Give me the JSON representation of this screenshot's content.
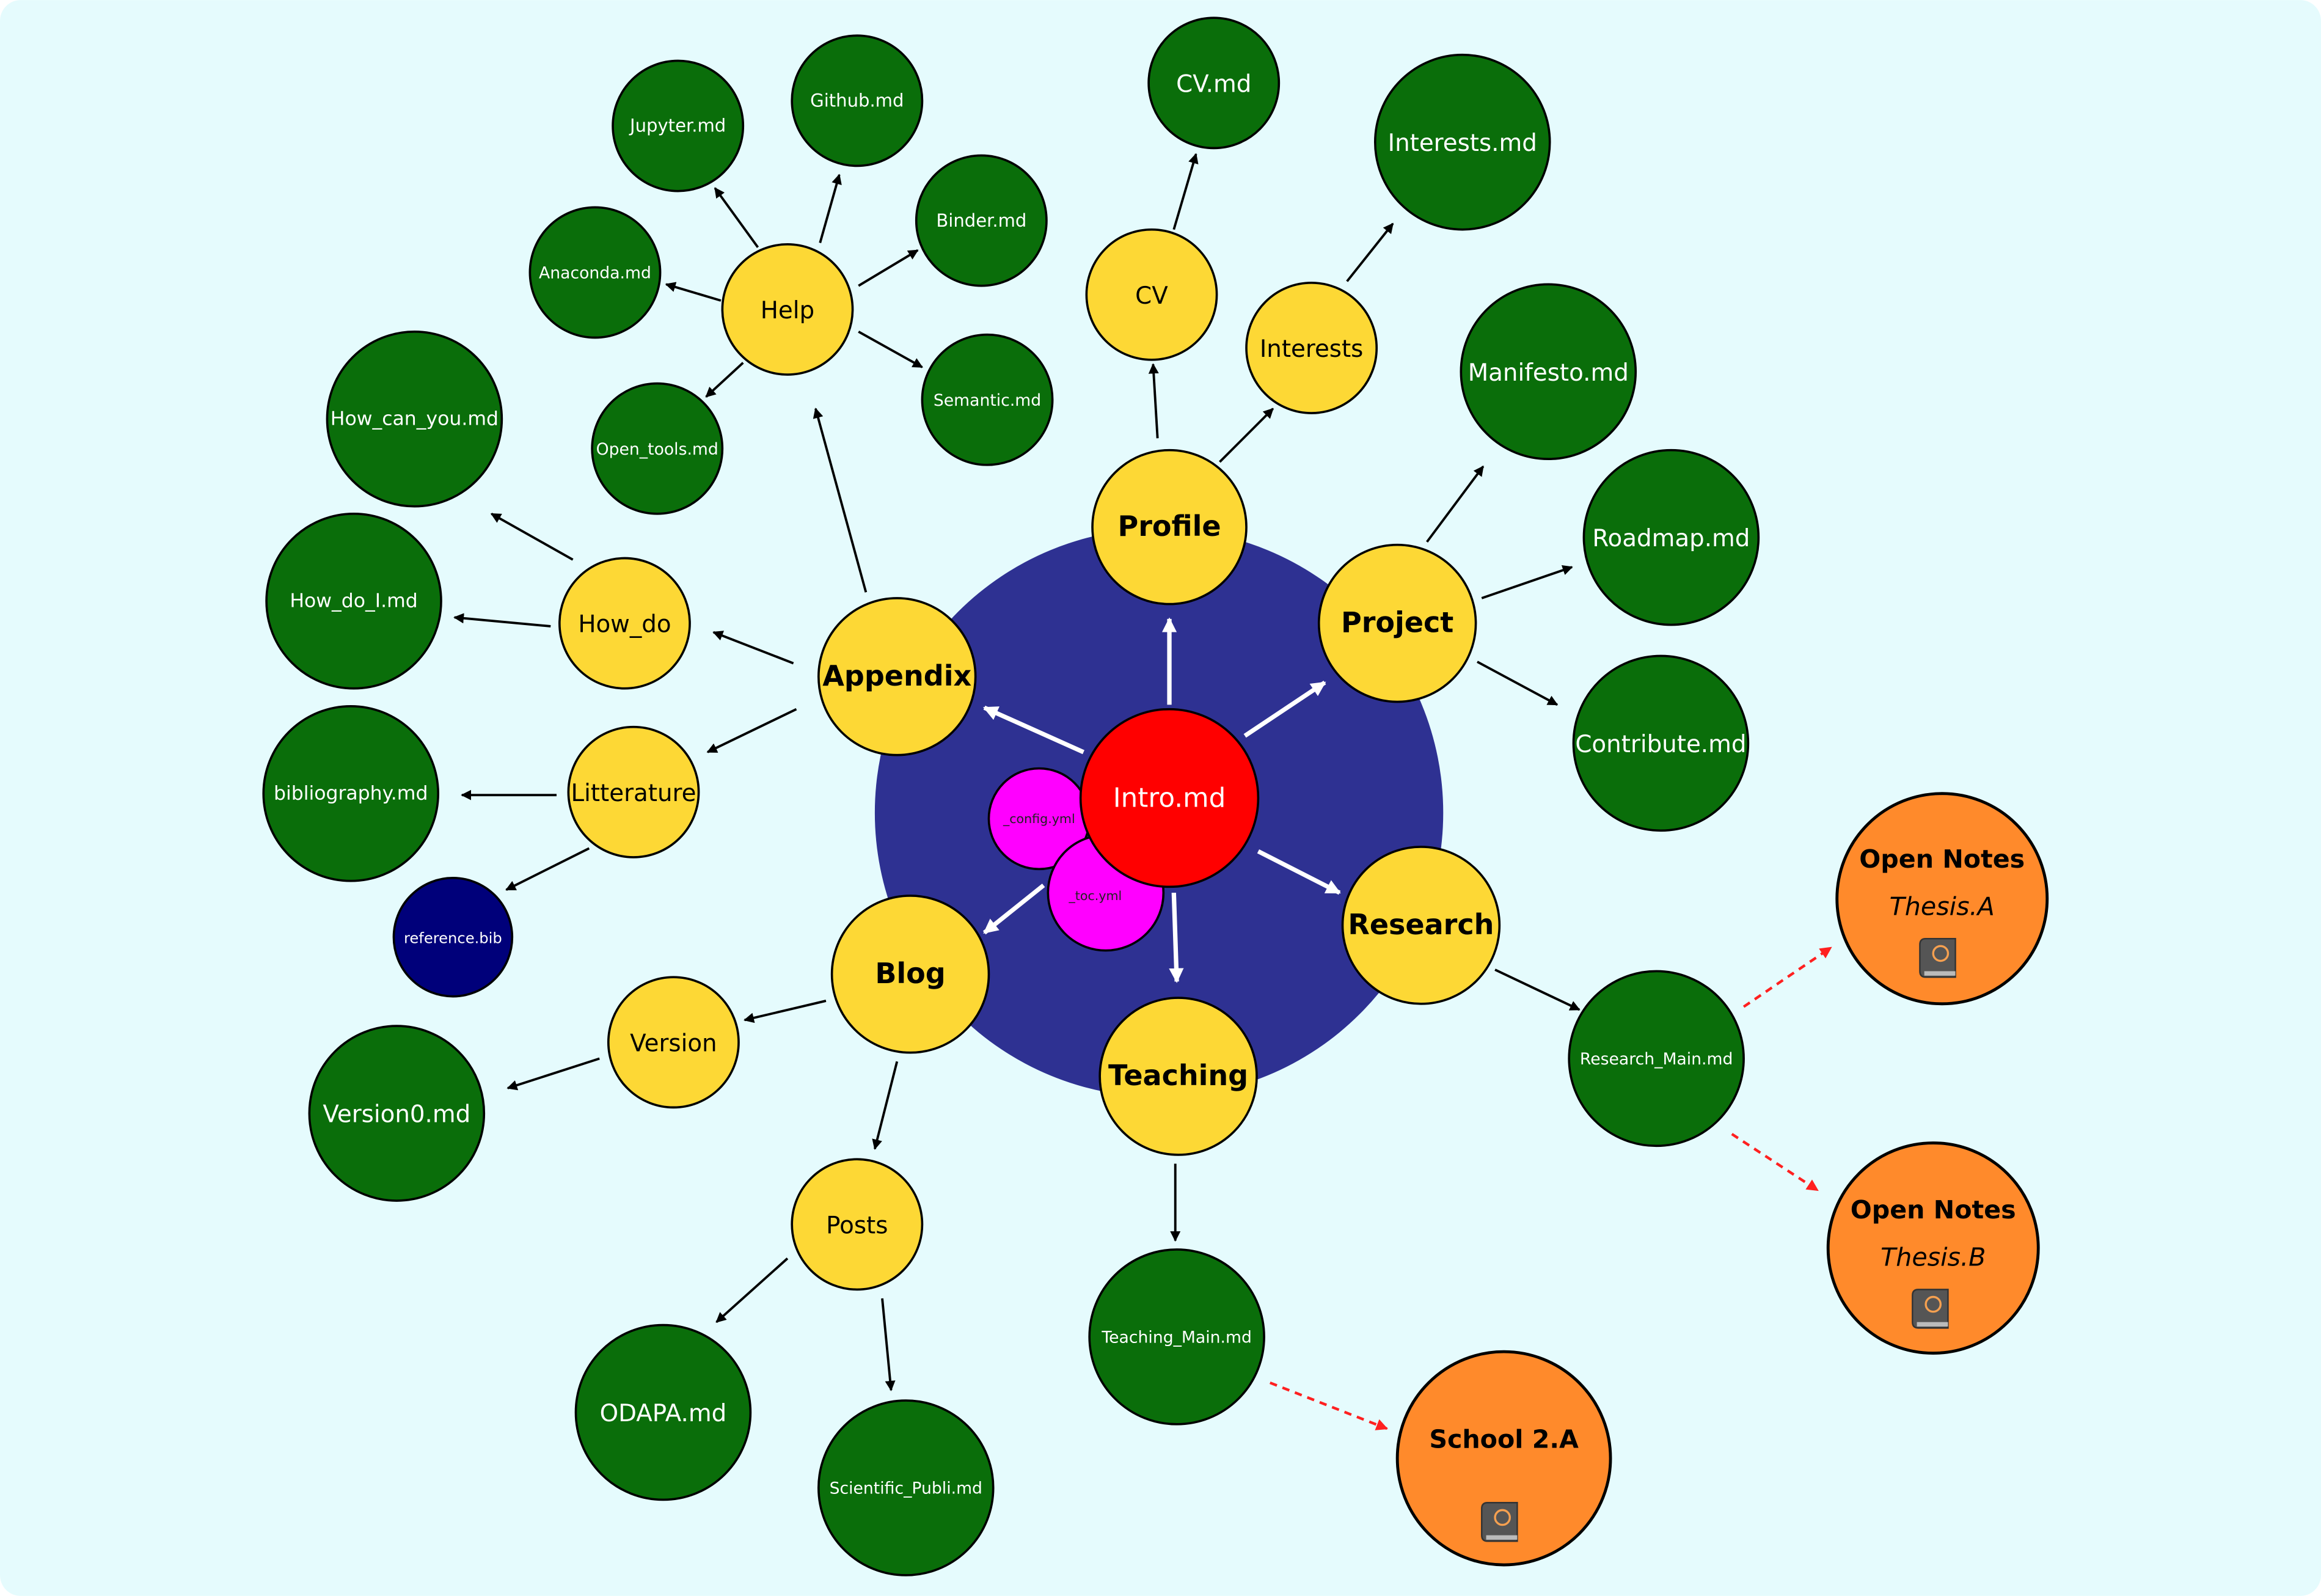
{
  "colors": {
    "background": "#e5fbfd",
    "hub_disk": "#2e3192",
    "center": "#ff0000",
    "config": "#ff00ff",
    "section": "#fdd835",
    "page": "#0a6e0a",
    "bib": "#00007a",
    "book": "#ff8a2b",
    "arrow": "#000000",
    "hub_arrow": "#ffffff",
    "dashed_arrow": "#ff2020"
  },
  "nodes": {
    "intro": "Intro.md",
    "config": "_config.yml",
    "toc": "_toc.yml",
    "profile": "Profile",
    "project": "Project",
    "research": "Research",
    "teaching": "Teaching",
    "blog": "Blog",
    "appendix": "Appendix",
    "cv": "CV",
    "cv_md": "CV.md",
    "interests": "Interests",
    "interests_md": "Interests.md",
    "manifesto_md": "Manifesto.md",
    "roadmap_md": "Roadmap.md",
    "contribute_md": "Contribute.md",
    "research_main_md": "Research_Main.md",
    "teaching_main_md": "Teaching_Main.md",
    "help": "Help",
    "jupyter_md": "Jupyter.md",
    "github_md": "Github.md",
    "binder_md": "Binder.md",
    "anaconda_md": "Anaconda.md",
    "semantic_md": "Semantic.md",
    "open_tools_md": "Open_tools.md",
    "how_do": "How_do",
    "how_can_you_md": "How_can_you.md",
    "how_do_i_md": "How_do_I.md",
    "litterature": "Litterature",
    "bibliography_md": "bibliography.md",
    "reference_bib": "reference.bib",
    "version": "Version",
    "version0_md": "Version0.md",
    "posts": "Posts",
    "odapa_md": "ODAPA.md",
    "scientific_publi_md": "Scientific_Publi.md"
  },
  "books": {
    "thesis_a": {
      "title": "Open Notes",
      "subtitle": "Thesis.A",
      "icon": "jupyter-book-icon"
    },
    "thesis_b": {
      "title": "Open Notes",
      "subtitle": "Thesis.B",
      "icon": "jupyter-book-icon"
    },
    "school": {
      "title": "School 2.A",
      "icon": "jupyter-book-icon"
    }
  }
}
